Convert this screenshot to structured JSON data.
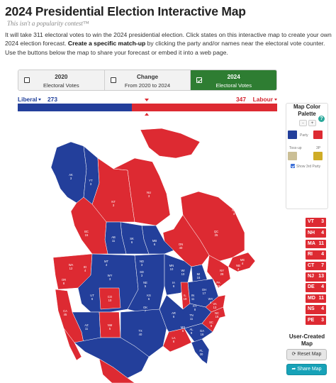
{
  "header": {
    "title": "2024 Presidential Election Interactive Map",
    "tagline": "This isn't a popularity contest™",
    "intro_1": "It will take 311 electoral votes to win the 2024 presidential election. Click states on this interactive map to create your own 2024 election forecast. ",
    "intro_bold": "Create a specific match-up",
    "intro_2": " by clicking the party and/or names near the electoral vote counter. Use the buttons below the map to share your forecast or embed it into a web page."
  },
  "tabs": [
    {
      "line1": "2020",
      "line2": "Electoral Votes",
      "active": false
    },
    {
      "line1": "Change",
      "line2": "From 2020 to 2024",
      "active": false
    },
    {
      "line1": "2024",
      "line2": "Electoral Votes",
      "active": true
    }
  ],
  "tally": {
    "left_party": "Liberal",
    "left_votes": "273",
    "right_votes": "347",
    "right_party": "Labour",
    "left_share": 0.44
  },
  "palette": {
    "title": "Map Color Palette",
    "minus": "-",
    "plus": "+",
    "party_label": "Party",
    "tossup_label": "Toss-up",
    "third_label": "3P",
    "show_third": "Show 3rd Party",
    "colors": {
      "blue": "#233f9b",
      "red": "#dd2a32",
      "tossup": "#cbbf96",
      "third": "#cfac26"
    }
  },
  "northeast": [
    {
      "abbr": "VT",
      "votes": "3"
    },
    {
      "abbr": "NH",
      "votes": "4"
    },
    {
      "abbr": "MA",
      "votes": "11"
    },
    {
      "abbr": "RI",
      "votes": "4"
    },
    {
      "abbr": "CT",
      "votes": "7"
    },
    {
      "abbr": "NJ",
      "votes": "13"
    },
    {
      "abbr": "DE",
      "votes": "4"
    },
    {
      "abbr": "MD",
      "votes": "11"
    },
    {
      "abbr": "NS",
      "votes": "4"
    },
    {
      "abbr": "PE",
      "votes": "3"
    }
  ],
  "map_labels": [
    {
      "name": "AK",
      "n": "3"
    },
    {
      "name": "YT",
      "n": "3"
    },
    {
      "name": "NT",
      "n": "3"
    },
    {
      "name": "NU",
      "n": "3"
    },
    {
      "name": "BC",
      "n": "15"
    },
    {
      "name": "AB",
      "n": "11"
    },
    {
      "name": "SK",
      "n": "6"
    },
    {
      "name": "MB",
      "n": "6"
    },
    {
      "name": "ON",
      "n": "40"
    },
    {
      "name": "QC",
      "n": "25"
    },
    {
      "name": "NL",
      "n": "3"
    },
    {
      "name": "WA",
      "n": "12"
    },
    {
      "name": "OR",
      "n": "8"
    },
    {
      "name": "CA",
      "n": "45"
    },
    {
      "name": "ID",
      "n": "4"
    },
    {
      "name": "NV",
      "n": "6"
    },
    {
      "name": "MT",
      "n": "4"
    },
    {
      "name": "WY",
      "n": "3"
    },
    {
      "name": "UT",
      "n": "6"
    },
    {
      "name": "CO",
      "n": "10"
    },
    {
      "name": "AZ",
      "n": "11"
    },
    {
      "name": "NM",
      "n": "5"
    },
    {
      "name": "ND",
      "n": "3"
    },
    {
      "name": "SD",
      "n": "3"
    },
    {
      "name": "NE",
      "n": "5"
    },
    {
      "name": "KS",
      "n": "6"
    },
    {
      "name": "OK",
      "n": "7"
    },
    {
      "name": "TX",
      "n": "40"
    },
    {
      "name": "MN",
      "n": "10"
    },
    {
      "name": "IA",
      "n": "6"
    },
    {
      "name": "MO",
      "n": "10"
    },
    {
      "name": "AR",
      "n": "6"
    },
    {
      "name": "LA",
      "n": "8"
    },
    {
      "name": "WI",
      "n": "10"
    },
    {
      "name": "IL",
      "n": "19"
    },
    {
      "name": "MI",
      "n": "15"
    },
    {
      "name": "IN",
      "n": "11"
    },
    {
      "name": "OH",
      "n": "17"
    },
    {
      "name": "KY",
      "n": "8"
    },
    {
      "name": "TN",
      "n": "11"
    },
    {
      "name": "MS",
      "n": "6"
    },
    {
      "name": "AL",
      "n": "9"
    },
    {
      "name": "GA",
      "n": "16"
    },
    {
      "name": "FL",
      "n": "30"
    },
    {
      "name": "SC",
      "n": "9"
    },
    {
      "name": "NC",
      "n": "16"
    },
    {
      "name": "VA",
      "n": "13"
    },
    {
      "name": "WV",
      "n": "4"
    },
    {
      "name": "PA",
      "n": "19"
    },
    {
      "name": "NY",
      "n": "28"
    },
    {
      "name": "ME",
      "n": "4"
    },
    {
      "name": "NB",
      "n": "4"
    }
  ],
  "user_created": {
    "title": "User-Created Map",
    "reset": "Reset Map",
    "share": "Share Map"
  }
}
